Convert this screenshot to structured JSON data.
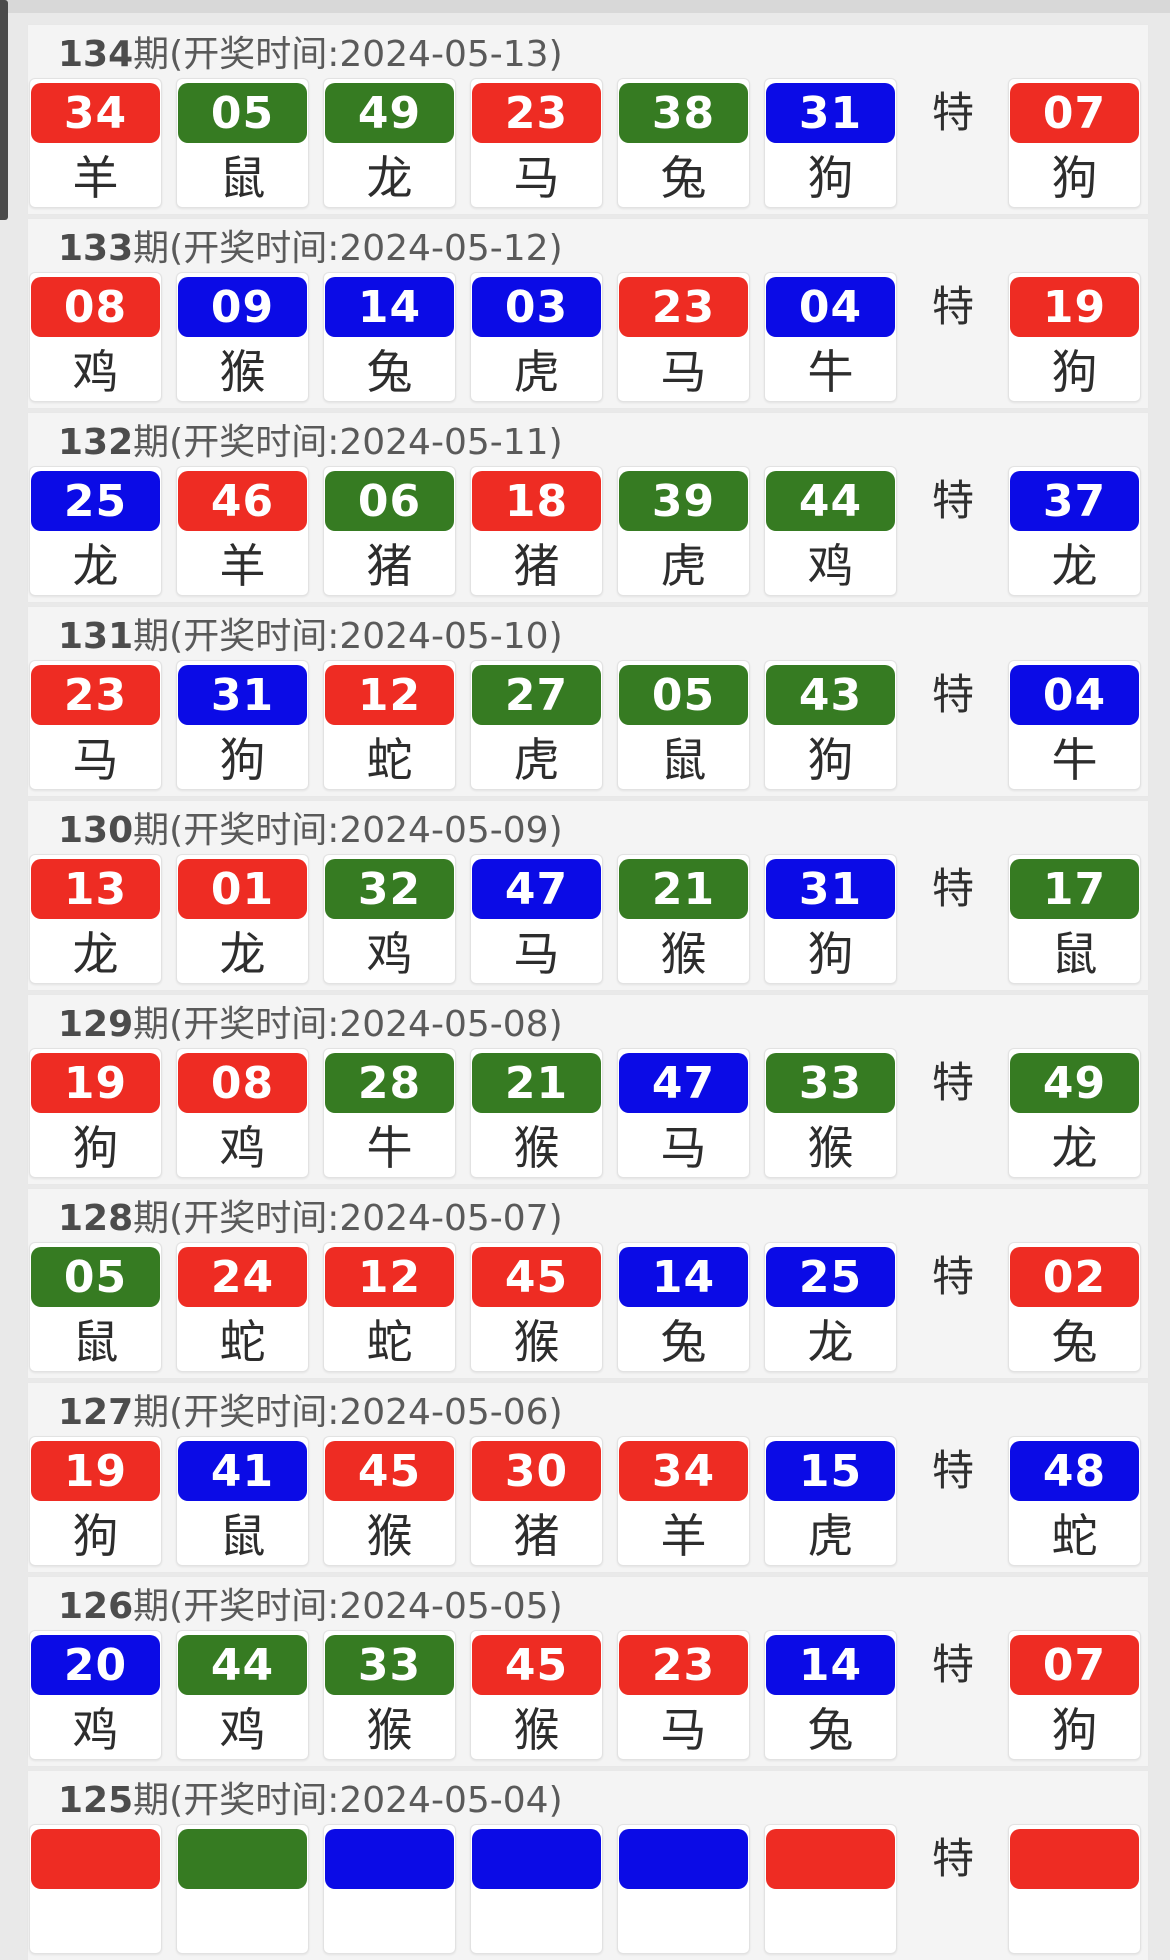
{
  "labels": {
    "special": "特"
  },
  "colors": {
    "red": "#ee2c23",
    "green": "#367b22",
    "blue": "#0b0be6"
  },
  "draws": [
    {
      "period": "134",
      "header_prefix": "期(开奖时间:",
      "date": "2024-05-13",
      "header_suffix": ")",
      "numbers": [
        {
          "num": "34",
          "color": "red",
          "zodiac": "羊"
        },
        {
          "num": "05",
          "color": "green",
          "zodiac": "鼠"
        },
        {
          "num": "49",
          "color": "green",
          "zodiac": "龙"
        },
        {
          "num": "23",
          "color": "red",
          "zodiac": "马"
        },
        {
          "num": "38",
          "color": "green",
          "zodiac": "兔"
        },
        {
          "num": "31",
          "color": "blue",
          "zodiac": "狗"
        }
      ],
      "special": {
        "num": "07",
        "color": "red",
        "zodiac": "狗"
      }
    },
    {
      "period": "133",
      "header_prefix": "期(开奖时间:",
      "date": "2024-05-12",
      "header_suffix": ")",
      "numbers": [
        {
          "num": "08",
          "color": "red",
          "zodiac": "鸡"
        },
        {
          "num": "09",
          "color": "blue",
          "zodiac": "猴"
        },
        {
          "num": "14",
          "color": "blue",
          "zodiac": "兔"
        },
        {
          "num": "03",
          "color": "blue",
          "zodiac": "虎"
        },
        {
          "num": "23",
          "color": "red",
          "zodiac": "马"
        },
        {
          "num": "04",
          "color": "blue",
          "zodiac": "牛"
        }
      ],
      "special": {
        "num": "19",
        "color": "red",
        "zodiac": "狗"
      }
    },
    {
      "period": "132",
      "header_prefix": "期(开奖时间:",
      "date": "2024-05-11",
      "header_suffix": ")",
      "numbers": [
        {
          "num": "25",
          "color": "blue",
          "zodiac": "龙"
        },
        {
          "num": "46",
          "color": "red",
          "zodiac": "羊"
        },
        {
          "num": "06",
          "color": "green",
          "zodiac": "猪"
        },
        {
          "num": "18",
          "color": "red",
          "zodiac": "猪"
        },
        {
          "num": "39",
          "color": "green",
          "zodiac": "虎"
        },
        {
          "num": "44",
          "color": "green",
          "zodiac": "鸡"
        }
      ],
      "special": {
        "num": "37",
        "color": "blue",
        "zodiac": "龙"
      }
    },
    {
      "period": "131",
      "header_prefix": "期(开奖时间:",
      "date": "2024-05-10",
      "header_suffix": ")",
      "numbers": [
        {
          "num": "23",
          "color": "red",
          "zodiac": "马"
        },
        {
          "num": "31",
          "color": "blue",
          "zodiac": "狗"
        },
        {
          "num": "12",
          "color": "red",
          "zodiac": "蛇"
        },
        {
          "num": "27",
          "color": "green",
          "zodiac": "虎"
        },
        {
          "num": "05",
          "color": "green",
          "zodiac": "鼠"
        },
        {
          "num": "43",
          "color": "green",
          "zodiac": "狗"
        }
      ],
      "special": {
        "num": "04",
        "color": "blue",
        "zodiac": "牛"
      }
    },
    {
      "period": "130",
      "header_prefix": "期(开奖时间:",
      "date": "2024-05-09",
      "header_suffix": ")",
      "numbers": [
        {
          "num": "13",
          "color": "red",
          "zodiac": "龙"
        },
        {
          "num": "01",
          "color": "red",
          "zodiac": "龙"
        },
        {
          "num": "32",
          "color": "green",
          "zodiac": "鸡"
        },
        {
          "num": "47",
          "color": "blue",
          "zodiac": "马"
        },
        {
          "num": "21",
          "color": "green",
          "zodiac": "猴"
        },
        {
          "num": "31",
          "color": "blue",
          "zodiac": "狗"
        }
      ],
      "special": {
        "num": "17",
        "color": "green",
        "zodiac": "鼠"
      }
    },
    {
      "period": "129",
      "header_prefix": "期(开奖时间:",
      "date": "2024-05-08",
      "header_suffix": ")",
      "numbers": [
        {
          "num": "19",
          "color": "red",
          "zodiac": "狗"
        },
        {
          "num": "08",
          "color": "red",
          "zodiac": "鸡"
        },
        {
          "num": "28",
          "color": "green",
          "zodiac": "牛"
        },
        {
          "num": "21",
          "color": "green",
          "zodiac": "猴"
        },
        {
          "num": "47",
          "color": "blue",
          "zodiac": "马"
        },
        {
          "num": "33",
          "color": "green",
          "zodiac": "猴"
        }
      ],
      "special": {
        "num": "49",
        "color": "green",
        "zodiac": "龙"
      }
    },
    {
      "period": "128",
      "header_prefix": "期(开奖时间:",
      "date": "2024-05-07",
      "header_suffix": ")",
      "numbers": [
        {
          "num": "05",
          "color": "green",
          "zodiac": "鼠"
        },
        {
          "num": "24",
          "color": "red",
          "zodiac": "蛇"
        },
        {
          "num": "12",
          "color": "red",
          "zodiac": "蛇"
        },
        {
          "num": "45",
          "color": "red",
          "zodiac": "猴"
        },
        {
          "num": "14",
          "color": "blue",
          "zodiac": "兔"
        },
        {
          "num": "25",
          "color": "blue",
          "zodiac": "龙"
        }
      ],
      "special": {
        "num": "02",
        "color": "red",
        "zodiac": "兔"
      }
    },
    {
      "period": "127",
      "header_prefix": "期(开奖时间:",
      "date": "2024-05-06",
      "header_suffix": ")",
      "numbers": [
        {
          "num": "19",
          "color": "red",
          "zodiac": "狗"
        },
        {
          "num": "41",
          "color": "blue",
          "zodiac": "鼠"
        },
        {
          "num": "45",
          "color": "red",
          "zodiac": "猴"
        },
        {
          "num": "30",
          "color": "red",
          "zodiac": "猪"
        },
        {
          "num": "34",
          "color": "red",
          "zodiac": "羊"
        },
        {
          "num": "15",
          "color": "blue",
          "zodiac": "虎"
        }
      ],
      "special": {
        "num": "48",
        "color": "blue",
        "zodiac": "蛇"
      }
    },
    {
      "period": "126",
      "header_prefix": "期(开奖时间:",
      "date": "2024-05-05",
      "header_suffix": ")",
      "numbers": [
        {
          "num": "20",
          "color": "blue",
          "zodiac": "鸡"
        },
        {
          "num": "44",
          "color": "green",
          "zodiac": "鸡"
        },
        {
          "num": "33",
          "color": "green",
          "zodiac": "猴"
        },
        {
          "num": "45",
          "color": "red",
          "zodiac": "猴"
        },
        {
          "num": "23",
          "color": "red",
          "zodiac": "马"
        },
        {
          "num": "14",
          "color": "blue",
          "zodiac": "兔"
        }
      ],
      "special": {
        "num": "07",
        "color": "red",
        "zodiac": "狗"
      }
    },
    {
      "period": "125",
      "header_prefix": "期(开奖时间:",
      "date": "2024-05-04",
      "header_suffix": ")",
      "numbers": [
        {
          "num": "",
          "color": "red",
          "zodiac": ""
        },
        {
          "num": "",
          "color": "green",
          "zodiac": ""
        },
        {
          "num": "",
          "color": "blue",
          "zodiac": ""
        },
        {
          "num": "",
          "color": "blue",
          "zodiac": ""
        },
        {
          "num": "",
          "color": "blue",
          "zodiac": ""
        },
        {
          "num": "",
          "color": "red",
          "zodiac": ""
        }
      ],
      "special": {
        "num": "",
        "color": "red",
        "zodiac": ""
      }
    }
  ]
}
